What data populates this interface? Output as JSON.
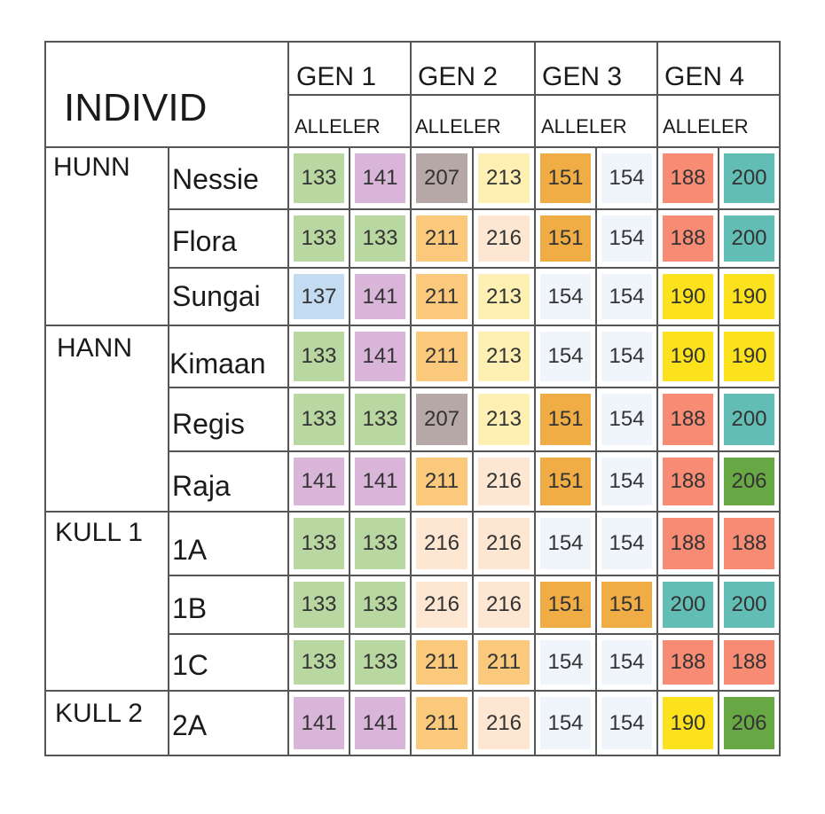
{
  "header": {
    "title": "INDIVID",
    "genes": [
      "GEN 1",
      "GEN 2",
      "GEN 3",
      "GEN 4"
    ],
    "allele_label": "ALLELER"
  },
  "colors": {
    "133": "#b9d7a0",
    "137": "#c4dcf2",
    "141": "#d9b6d9",
    "207": "#b6a8a6",
    "211": "#fbc97c",
    "213": "#fdf0b2",
    "216": "#fde6d2",
    "151": "#f0ac45",
    "154": "#f0f5fc",
    "188": "#f88b73",
    "190": "#fce21c",
    "200": "#62bdb4",
    "206": "#67a845"
  },
  "groups": [
    {
      "name": "HUNN",
      "rows": [
        {
          "name": "Nessie",
          "alleles": [
            "133",
            "141",
            "207",
            "213",
            "151",
            "154",
            "188",
            "200"
          ]
        },
        {
          "name": "Flora",
          "alleles": [
            "133",
            "133",
            "211",
            "216",
            "151",
            "154",
            "188",
            "200"
          ]
        },
        {
          "name": "Sungai",
          "alleles": [
            "137",
            "141",
            "211",
            "213",
            "154",
            "154",
            "190",
            "190"
          ]
        }
      ]
    },
    {
      "name": "HANN",
      "rows": [
        {
          "name": "Kimaan",
          "alleles": [
            "133",
            "141",
            "211",
            "213",
            "154",
            "154",
            "190",
            "190"
          ]
        },
        {
          "name": "Regis",
          "alleles": [
            "133",
            "133",
            "207",
            "213",
            "151",
            "154",
            "188",
            "200"
          ]
        },
        {
          "name": "Raja",
          "alleles": [
            "141",
            "141",
            "211",
            "216",
            "151",
            "154",
            "188",
            "206"
          ]
        }
      ]
    },
    {
      "name": "KULL 1",
      "rows": [
        {
          "name": "1A",
          "alleles": [
            "133",
            "133",
            "216",
            "216",
            "154",
            "154",
            "188",
            "188"
          ]
        },
        {
          "name": "1B",
          "alleles": [
            "133",
            "133",
            "216",
            "216",
            "151",
            "151",
            "200",
            "200"
          ]
        },
        {
          "name": "1C",
          "alleles": [
            "133",
            "133",
            "211",
            "211",
            "154",
            "154",
            "188",
            "188"
          ]
        }
      ]
    },
    {
      "name": "KULL 2",
      "rows": [
        {
          "name": "2A",
          "alleles": [
            "141",
            "141",
            "211",
            "216",
            "154",
            "154",
            "190",
            "206"
          ]
        }
      ]
    }
  ]
}
